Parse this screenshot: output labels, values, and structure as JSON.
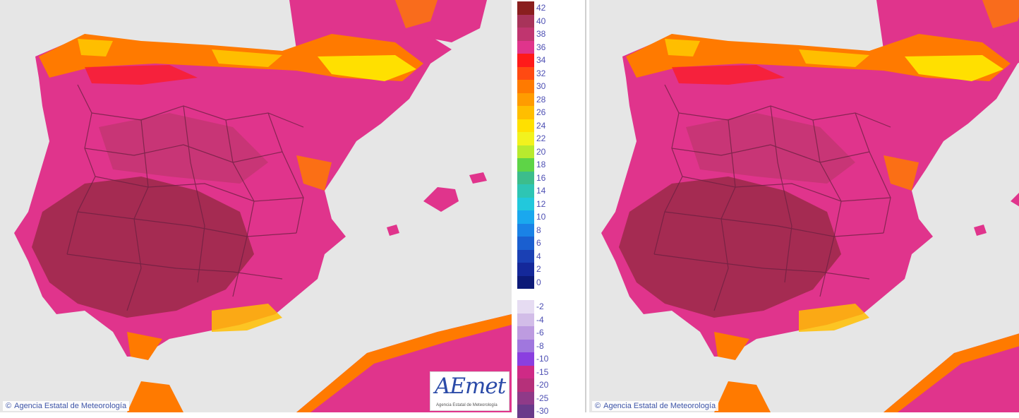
{
  "credit": {
    "copyright_symbol": "©",
    "text": "Agencia Estatal de Meteorología"
  },
  "logo": {
    "text": "AEmet",
    "subtitle": "Agencia Estatal de Meteorología"
  },
  "legend": {
    "entries": [
      {
        "label": "42",
        "color": "#8a1f1f"
      },
      {
        "label": "40",
        "color": "#a8335a"
      },
      {
        "label": "38",
        "color": "#c0356f"
      },
      {
        "label": "36",
        "color": "#e0348c"
      },
      {
        "label": "34",
        "color": "#ff1a1a"
      },
      {
        "label": "32",
        "color": "#ff4a12"
      },
      {
        "label": "30",
        "color": "#ff7a00"
      },
      {
        "label": "28",
        "color": "#ff9c00"
      },
      {
        "label": "26",
        "color": "#ffbe00"
      },
      {
        "label": "24",
        "color": "#ffe000"
      },
      {
        "label": "22",
        "color": "#f2f21e"
      },
      {
        "label": "20",
        "color": "#b8ea2e"
      },
      {
        "label": "18",
        "color": "#5ed447"
      },
      {
        "label": "16",
        "color": "#3cbd8c"
      },
      {
        "label": "14",
        "color": "#2ec5b4"
      },
      {
        "label": "12",
        "color": "#22c8dc"
      },
      {
        "label": "10",
        "color": "#1aa8ee"
      },
      {
        "label": "8",
        "color": "#1a82e6"
      },
      {
        "label": "6",
        "color": "#1a5fd0"
      },
      {
        "label": "4",
        "color": "#1a40b4"
      },
      {
        "label": "2",
        "color": "#14289a"
      },
      {
        "label": "0",
        "color": "#0c1a78"
      },
      {
        "label": "-2",
        "color": "#e6dcf2"
      },
      {
        "label": "-4",
        "color": "#d2bde8"
      },
      {
        "label": "-6",
        "color": "#bd9be0"
      },
      {
        "label": "-8",
        "color": "#a077de"
      },
      {
        "label": "-10",
        "color": "#8a3fe0"
      },
      {
        "label": "-15",
        "color": "#cf2a86"
      },
      {
        "label": "-20",
        "color": "#b6307a"
      },
      {
        "label": "-25",
        "color": "#8f3a88"
      },
      {
        "label": "-30",
        "color": "#6a3a8a"
      }
    ]
  },
  "colors": {
    "sea": "#e6e6e6",
    "land_hot": "#e0348c",
    "land_hotter": "#c0356f",
    "land_hottest": "#9a2a48",
    "coast_mild": "#ff9c00",
    "coast_warm": "#ff1a1a",
    "mountain": "#ffe000",
    "borders": "#6a2040"
  }
}
